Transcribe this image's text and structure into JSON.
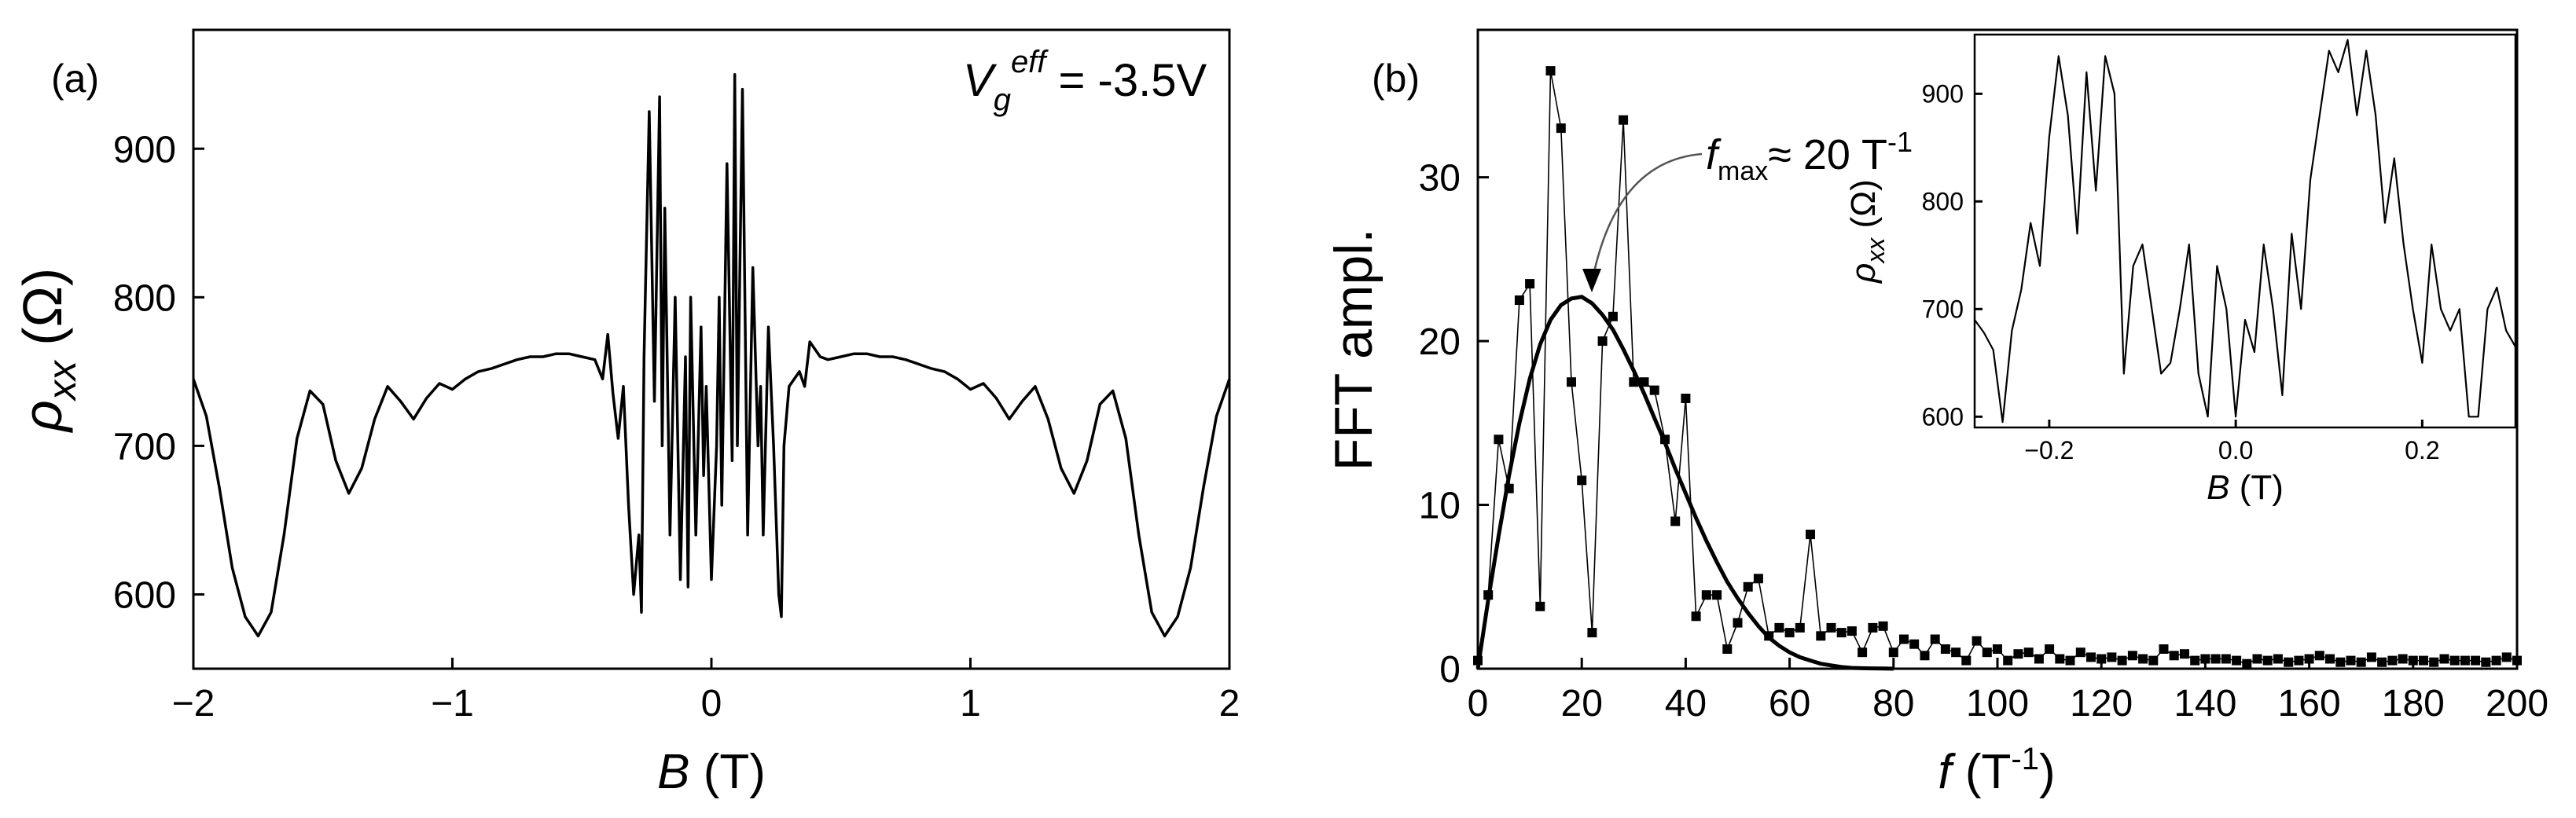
{
  "chart_data": [
    {
      "panel": "(a)",
      "type": "line",
      "annotation": {
        "main": "V",
        "sub": "g",
        "sup": "eff",
        "rest": " = -3.5V"
      },
      "xlabel": {
        "italic": "B",
        "rest": " (T)"
      },
      "ylabel": {
        "symbol": "ρ",
        "sub": "xx",
        "rest": " (Ω)"
      },
      "xlim": [
        -2,
        2
      ],
      "ylim": [
        550,
        980
      ],
      "xticks": [
        -2,
        -1,
        0,
        1,
        2
      ],
      "xtick_labels": [
        "−2",
        "−1",
        "0",
        "1",
        "2"
      ],
      "yticks": [
        600,
        700,
        800,
        900
      ],
      "ytick_labels": [
        "600",
        "700",
        "800",
        "900"
      ],
      "series": [
        {
          "name": "rho_xx",
          "x": [
            -2.0,
            -1.95,
            -1.9,
            -1.85,
            -1.8,
            -1.75,
            -1.7,
            -1.65,
            -1.6,
            -1.55,
            -1.5,
            -1.45,
            -1.4,
            -1.35,
            -1.3,
            -1.25,
            -1.2,
            -1.15,
            -1.1,
            -1.05,
            -1.0,
            -0.95,
            -0.9,
            -0.85,
            -0.8,
            -0.75,
            -0.7,
            -0.65,
            -0.6,
            -0.55,
            -0.5,
            -0.45,
            -0.42,
            -0.4,
            -0.38,
            -0.36,
            -0.34,
            -0.32,
            -0.3,
            -0.28,
            -0.27,
            -0.26,
            -0.24,
            -0.22,
            -0.2,
            -0.19,
            -0.18,
            -0.16,
            -0.14,
            -0.12,
            -0.1,
            -0.09,
            -0.08,
            -0.06,
            -0.04,
            -0.03,
            -0.02,
            0.0,
            0.02,
            0.03,
            0.04,
            0.06,
            0.08,
            0.09,
            0.1,
            0.12,
            0.14,
            0.16,
            0.18,
            0.19,
            0.2,
            0.22,
            0.24,
            0.26,
            0.27,
            0.28,
            0.3,
            0.32,
            0.34,
            0.36,
            0.38,
            0.4,
            0.42,
            0.45,
            0.5,
            0.55,
            0.6,
            0.65,
            0.7,
            0.75,
            0.8,
            0.85,
            0.9,
            0.95,
            1.0,
            1.05,
            1.1,
            1.15,
            1.2,
            1.25,
            1.3,
            1.35,
            1.4,
            1.45,
            1.5,
            1.55,
            1.6,
            1.65,
            1.7,
            1.75,
            1.8,
            1.85,
            1.9,
            1.95,
            2.0
          ],
          "y": [
            745,
            720,
            672,
            618,
            585,
            572,
            588,
            640,
            705,
            737,
            728,
            690,
            668,
            685,
            718,
            740,
            730,
            718,
            732,
            742,
            738,
            745,
            750,
            752,
            755,
            758,
            760,
            760,
            762,
            762,
            760,
            758,
            745,
            775,
            735,
            705,
            740,
            660,
            600,
            640,
            588,
            760,
            925,
            730,
            935,
            700,
            860,
            640,
            800,
            610,
            760,
            605,
            800,
            640,
            780,
            680,
            740,
            610,
            700,
            800,
            660,
            890,
            690,
            950,
            700,
            940,
            640,
            820,
            700,
            740,
            640,
            780,
            700,
            600,
            585,
            700,
            740,
            745,
            750,
            740,
            770,
            765,
            760,
            758,
            760,
            762,
            762,
            760,
            760,
            758,
            755,
            752,
            750,
            745,
            738,
            742,
            732,
            718,
            730,
            740,
            718,
            685,
            668,
            690,
            728,
            737,
            705,
            640,
            588,
            572,
            585,
            618,
            672,
            720,
            745
          ]
        }
      ]
    },
    {
      "panel": "(b)",
      "type": "scatter",
      "annotation": {
        "main": "f",
        "sub": "max",
        "rest": "≈ 20 T",
        "sup": "-1"
      },
      "xlabel": {
        "italic": "f",
        "rest": " (T",
        "sup": "-1",
        "close": ")"
      },
      "ylabel": "FFT ampl.",
      "xlim": [
        0,
        200
      ],
      "ylim": [
        0,
        39
      ],
      "xticks": [
        0,
        20,
        40,
        60,
        80,
        100,
        120,
        140,
        160,
        180,
        200
      ],
      "xtick_labels": [
        "0",
        "20",
        "40",
        "60",
        "80",
        "100",
        "120",
        "140",
        "160",
        "180",
        "200"
      ],
      "yticks": [
        0,
        10,
        20,
        30
      ],
      "ytick_labels": [
        "0",
        "10",
        "20",
        "30"
      ],
      "series": [
        {
          "name": "FFT amplitude",
          "x": [
            0,
            2,
            4,
            6,
            8,
            10,
            12,
            14,
            16,
            18,
            20,
            22,
            24,
            26,
            28,
            30,
            32,
            34,
            36,
            38,
            40,
            42,
            44,
            46,
            48,
            50,
            52,
            54,
            56,
            58,
            60,
            62,
            64,
            66,
            68,
            70,
            72,
            74,
            76,
            78,
            80,
            82,
            84,
            86,
            88,
            90,
            92,
            94,
            96,
            98,
            100,
            102,
            104,
            106,
            108,
            110,
            112,
            114,
            116,
            118,
            120,
            122,
            124,
            126,
            128,
            130,
            132,
            134,
            136,
            138,
            140,
            142,
            144,
            146,
            148,
            150,
            152,
            154,
            156,
            158,
            160,
            162,
            164,
            166,
            168,
            170,
            172,
            174,
            176,
            178,
            180,
            182,
            184,
            186,
            188,
            190,
            192,
            194,
            196,
            198,
            200
          ],
          "y": [
            0.5,
            4.5,
            14.0,
            11.0,
            22.5,
            23.5,
            3.8,
            36.5,
            33.0,
            17.5,
            11.5,
            2.2,
            20.0,
            21.5,
            33.5,
            17.5,
            17.5,
            17.0,
            14.0,
            9.0,
            16.5,
            3.2,
            4.5,
            4.5,
            1.2,
            2.8,
            5.0,
            5.5,
            2.0,
            2.5,
            2.2,
            2.5,
            8.2,
            2.0,
            2.5,
            2.2,
            2.3,
            1.0,
            2.5,
            2.6,
            1.0,
            1.8,
            1.5,
            0.8,
            1.8,
            1.2,
            1.0,
            0.5,
            1.7,
            1.0,
            1.2,
            0.5,
            0.9,
            1.0,
            0.6,
            1.2,
            0.6,
            0.5,
            1.0,
            0.7,
            0.6,
            0.7,
            0.5,
            0.8,
            0.6,
            0.5,
            1.2,
            0.8,
            0.9,
            0.5,
            0.6,
            0.6,
            0.6,
            0.5,
            0.3,
            0.6,
            0.5,
            0.6,
            0.4,
            0.5,
            0.6,
            0.8,
            0.6,
            0.4,
            0.5,
            0.4,
            0.7,
            0.4,
            0.5,
            0.6,
            0.5,
            0.5,
            0.4,
            0.6,
            0.5,
            0.5,
            0.5,
            0.4,
            0.5,
            0.7,
            0.5
          ]
        },
        {
          "name": "fit",
          "type": "line",
          "x": [
            0,
            2,
            4,
            6,
            8,
            10,
            12,
            14,
            16,
            18,
            20,
            22,
            24,
            26,
            28,
            30,
            32,
            34,
            36,
            38,
            40,
            42,
            44,
            46,
            48,
            50,
            52,
            54,
            56,
            58,
            60,
            62,
            64,
            66,
            68,
            70,
            72,
            74,
            76,
            78,
            80
          ],
          "y": [
            0.0,
            4.2,
            8.1,
            11.8,
            15.0,
            17.7,
            19.8,
            21.3,
            22.2,
            22.6,
            22.7,
            22.3,
            21.6,
            20.7,
            19.5,
            18.2,
            16.8,
            15.3,
            13.8,
            12.2,
            10.7,
            9.2,
            7.8,
            6.5,
            5.3,
            4.3,
            3.4,
            2.6,
            1.9,
            1.4,
            1.0,
            0.7,
            0.5,
            0.3,
            0.2,
            0.1,
            0.05,
            0.03,
            0.02,
            0.01,
            0.0
          ]
        }
      ]
    },
    {
      "panel": "(b) inset",
      "type": "line",
      "xlabel": {
        "italic": "B",
        "rest": " (T)"
      },
      "ylabel": {
        "symbol": "ρ",
        "sub": "xx",
        "rest": " (Ω)"
      },
      "xlim": [
        -0.28,
        0.3
      ],
      "ylim": [
        590,
        955
      ],
      "xticks": [
        -0.2,
        0.0,
        0.2
      ],
      "xtick_labels": [
        "−0.2",
        "0.0",
        "0.2"
      ],
      "yticks": [
        600,
        700,
        800,
        900
      ],
      "ytick_labels": [
        "600",
        "700",
        "800",
        "900"
      ],
      "series": [
        {
          "name": "rho_xx zoom",
          "x": [
            -0.28,
            -0.27,
            -0.26,
            -0.25,
            -0.24,
            -0.23,
            -0.22,
            -0.21,
            -0.2,
            -0.19,
            -0.18,
            -0.17,
            -0.16,
            -0.15,
            -0.14,
            -0.13,
            -0.12,
            -0.11,
            -0.1,
            -0.09,
            -0.08,
            -0.07,
            -0.06,
            -0.05,
            -0.04,
            -0.03,
            -0.02,
            -0.01,
            0.0,
            0.01,
            0.02,
            0.03,
            0.04,
            0.05,
            0.06,
            0.07,
            0.08,
            0.09,
            0.1,
            0.11,
            0.12,
            0.13,
            0.14,
            0.15,
            0.16,
            0.17,
            0.18,
            0.19,
            0.2,
            0.21,
            0.22,
            0.23,
            0.24,
            0.25,
            0.26,
            0.27,
            0.28,
            0.29,
            0.3
          ],
          "y": [
            690,
            678,
            662,
            595,
            680,
            718,
            780,
            740,
            860,
            935,
            880,
            770,
            920,
            810,
            935,
            900,
            640,
            740,
            760,
            700,
            640,
            650,
            700,
            760,
            640,
            600,
            740,
            700,
            600,
            690,
            660,
            760,
            700,
            620,
            770,
            700,
            820,
            880,
            940,
            920,
            950,
            880,
            940,
            880,
            780,
            840,
            760,
            700,
            650,
            760,
            700,
            680,
            700,
            600,
            600,
            700,
            720,
            680,
            665
          ]
        }
      ]
    }
  ]
}
